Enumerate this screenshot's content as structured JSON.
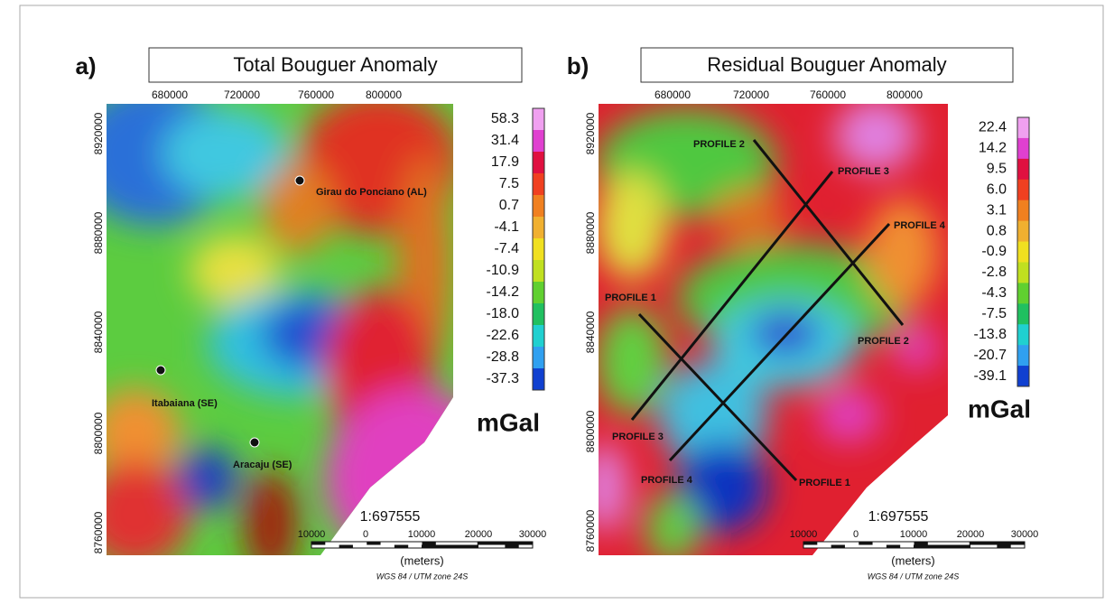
{
  "panels": [
    {
      "label": "a)",
      "title": "Total Bouguer Anomaly",
      "x_ticks": [
        "680000",
        "720000",
        "760000",
        "800000"
      ],
      "y_ticks": [
        "8920000",
        "8880000",
        "8840000",
        "8800000",
        "8760000"
      ],
      "colorbar": {
        "labels": [
          "58.3",
          "31.4",
          "17.9",
          "7.5",
          "0.7",
          "-4.1",
          "-7.4",
          "-10.9",
          "-14.2",
          "-18.0",
          "-22.6",
          "-28.8",
          "-37.3"
        ],
        "unit": "mGal"
      },
      "places": [
        "Girau do Ponciano (AL)",
        "Itabaiana (SE)",
        "Aracaju (SE)"
      ],
      "scale": "1:697555",
      "scale_bar": {
        "ticks": [
          "10000",
          "0",
          "10000",
          "20000",
          "30000"
        ],
        "unit": "(meters)"
      },
      "projection": "WGS 84 / UTM zone 24S"
    },
    {
      "label": "b)",
      "title": "Residual Bouguer Anomaly",
      "x_ticks": [
        "680000",
        "720000",
        "760000",
        "800000"
      ],
      "y_ticks": [
        "8920000",
        "8880000",
        "8840000",
        "8800000",
        "8760000"
      ],
      "colorbar": {
        "labels": [
          "22.4",
          "14.2",
          "9.5",
          "6.0",
          "3.1",
          "0.8",
          "-0.9",
          "-2.8",
          "-4.3",
          "-7.5",
          "-13.8",
          "-20.7",
          "-39.1"
        ],
        "unit": "mGal"
      },
      "profiles": [
        {
          "start": "PROFILE 1",
          "end": "PROFILE 1"
        },
        {
          "start": "PROFILE 2",
          "end": "PROFILE 2"
        },
        {
          "start": "PROFILE 3",
          "end": "PROFILE 3"
        },
        {
          "start": "PROFILE 4",
          "end": "PROFILE 4"
        }
      ],
      "scale": "1:697555",
      "scale_bar": {
        "ticks": [
          "10000",
          "0",
          "10000",
          "20000",
          "30000"
        ],
        "unit": "(meters)"
      },
      "projection": "WGS 84 / UTM zone 24S"
    }
  ]
}
